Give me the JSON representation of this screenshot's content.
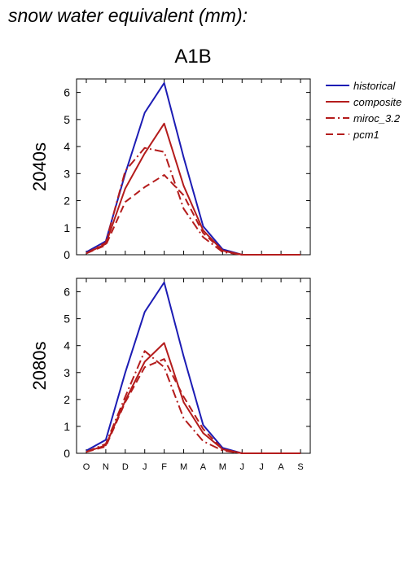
{
  "title": "snow water equivalent (mm):",
  "scenario": "A1B",
  "colors": {
    "historical": "#1c1cb4",
    "projected": "#b41c1c"
  },
  "legend": [
    {
      "name": "historical",
      "color": "#1c1cb4",
      "dash": "solid"
    },
    {
      "name": "composite",
      "color": "#b41c1c",
      "dash": "solid"
    },
    {
      "name": "miroc_3.2",
      "color": "#b41c1c",
      "dash": "dashdot"
    },
    {
      "name": "pcm1",
      "color": "#b41c1c",
      "dash": "dash"
    }
  ],
  "chart_data": [
    {
      "type": "line",
      "panel_label": "2040s",
      "categories": [
        "O",
        "N",
        "D",
        "J",
        "F",
        "M",
        "A",
        "M",
        "J",
        "J",
        "A",
        "S"
      ],
      "ylim": [
        0,
        6.5
      ],
      "yticks": [
        0,
        1,
        2,
        3,
        4,
        5,
        6
      ],
      "grid": false,
      "legend_position": "right",
      "series": [
        {
          "name": "historical",
          "values": [
            0.1,
            0.5,
            3.0,
            5.25,
            6.35,
            3.6,
            1.05,
            0.2,
            0.0,
            0.0,
            0.0,
            0.0
          ]
        },
        {
          "name": "composite",
          "values": [
            0.05,
            0.4,
            2.45,
            3.75,
            4.85,
            2.55,
            0.9,
            0.15,
            0.0,
            0.0,
            0.0,
            0.0
          ]
        },
        {
          "name": "miroc_3.2",
          "values": [
            0.05,
            0.45,
            3.1,
            3.95,
            3.8,
            1.7,
            0.65,
            0.1,
            0.0,
            0.0,
            0.0,
            0.0
          ]
        },
        {
          "name": "pcm1",
          "values": [
            0.05,
            0.35,
            1.95,
            2.5,
            2.95,
            2.2,
            0.8,
            0.15,
            0.0,
            0.0,
            0.0,
            0.0
          ]
        }
      ]
    },
    {
      "type": "line",
      "panel_label": "2080s",
      "categories": [
        "O",
        "N",
        "D",
        "J",
        "F",
        "M",
        "A",
        "M",
        "J",
        "J",
        "A",
        "S"
      ],
      "ylim": [
        0,
        6.5
      ],
      "yticks": [
        0,
        1,
        2,
        3,
        4,
        5,
        6
      ],
      "grid": false,
      "series": [
        {
          "name": "historical",
          "values": [
            0.1,
            0.5,
            3.0,
            5.25,
            6.35,
            3.6,
            1.05,
            0.2,
            0.0,
            0.0,
            0.0,
            0.0
          ]
        },
        {
          "name": "composite",
          "values": [
            0.05,
            0.3,
            1.95,
            3.4,
            4.1,
            1.9,
            0.75,
            0.15,
            0.0,
            0.0,
            0.0,
            0.0
          ]
        },
        {
          "name": "miroc_3.2",
          "values": [
            0.05,
            0.35,
            2.1,
            3.8,
            3.2,
            1.3,
            0.45,
            0.1,
            0.0,
            0.0,
            0.0,
            0.0
          ]
        },
        {
          "name": "pcm1",
          "values": [
            0.05,
            0.25,
            1.9,
            3.2,
            3.5,
            2.1,
            0.9,
            0.15,
            0.0,
            0.0,
            0.0,
            0.0
          ]
        }
      ]
    }
  ]
}
